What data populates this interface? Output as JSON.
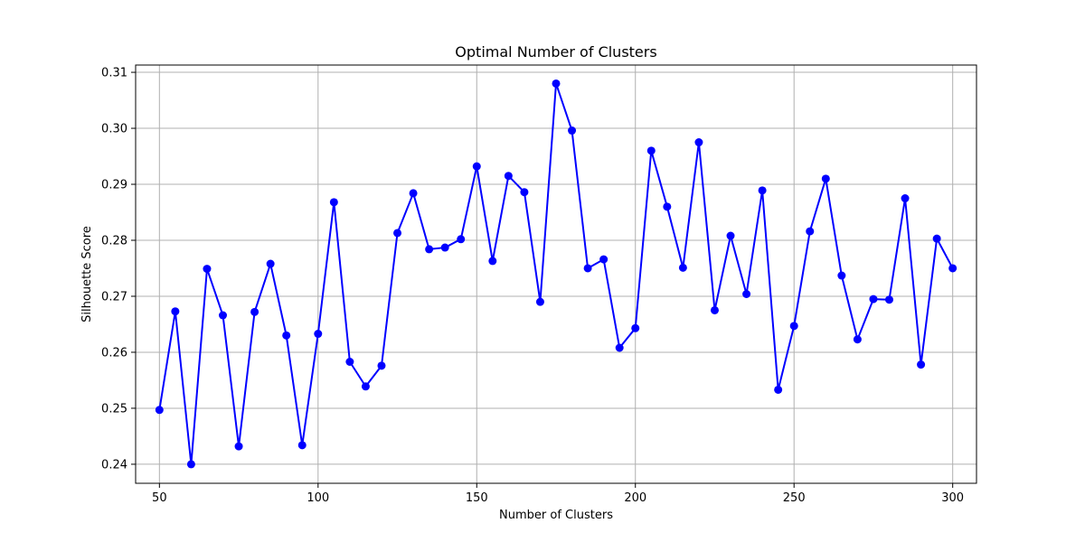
{
  "chart_data": {
    "type": "line",
    "title": "Optimal Number of Clusters",
    "xlabel": "Number of Clusters",
    "ylabel": "Silhouette Score",
    "xlim": [
      42.5,
      307.5
    ],
    "ylim": [
      0.2366,
      0.3113
    ],
    "xticks": [
      50,
      100,
      150,
      200,
      250,
      300
    ],
    "yticks": [
      0.24,
      0.25,
      0.26,
      0.27,
      0.28,
      0.29,
      0.3,
      0.31
    ],
    "ytick_labels": [
      "0.24",
      "0.25",
      "0.26",
      "0.27",
      "0.28",
      "0.29",
      "0.30",
      "0.31"
    ],
    "grid": true,
    "legend": "none",
    "series": [
      {
        "color": "#0000ff",
        "marker": "circle",
        "x": [
          50,
          55,
          60,
          65,
          70,
          75,
          80,
          85,
          90,
          95,
          100,
          105,
          110,
          115,
          120,
          125,
          130,
          135,
          140,
          145,
          150,
          155,
          160,
          165,
          170,
          175,
          180,
          185,
          190,
          195,
          200,
          205,
          210,
          215,
          220,
          225,
          230,
          235,
          240,
          245,
          250,
          255,
          260,
          265,
          270,
          275,
          280,
          285,
          290,
          295,
          300
        ],
        "y": [
          0.2497,
          0.2673,
          0.24,
          0.2749,
          0.2666,
          0.2432,
          0.2672,
          0.2758,
          0.263,
          0.2434,
          0.2633,
          0.2868,
          0.2583,
          0.2539,
          0.2576,
          0.2813,
          0.2884,
          0.2784,
          0.2787,
          0.2802,
          0.2932,
          0.2763,
          0.2915,
          0.2886,
          0.269,
          0.308,
          0.2996,
          0.275,
          0.2766,
          0.2608,
          0.2643,
          0.296,
          0.286,
          0.2751,
          0.2975,
          0.2675,
          0.2808,
          0.2704,
          0.2889,
          0.2533,
          0.2647,
          0.2816,
          0.291,
          0.2737,
          0.2623,
          0.2695,
          0.2694,
          0.2875,
          0.2578,
          0.2803,
          0.275
        ]
      }
    ]
  }
}
